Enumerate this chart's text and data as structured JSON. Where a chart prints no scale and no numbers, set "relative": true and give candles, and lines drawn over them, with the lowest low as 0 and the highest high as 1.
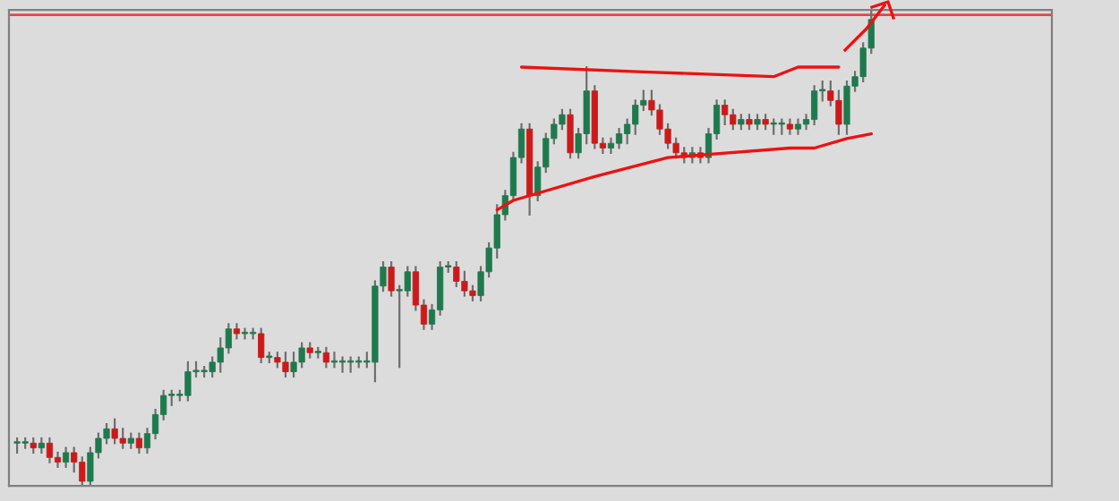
{
  "chart_data": {
    "type": "candlestick",
    "relative": true,
    "categories": [
      null,
      null,
      null,
      null,
      null,
      null,
      null,
      null,
      null,
      null,
      null,
      null,
      null,
      null,
      null,
      null,
      null,
      null,
      null,
      null,
      null,
      null,
      null,
      null,
      null,
      null,
      null,
      null,
      null,
      null,
      null,
      null,
      null,
      null,
      null,
      null,
      null,
      null,
      null,
      null,
      null,
      null,
      null,
      null,
      null,
      null,
      null,
      null,
      null,
      null,
      null,
      null,
      null,
      null,
      null,
      null,
      null,
      null,
      null,
      null,
      null,
      null,
      null,
      null,
      null,
      null,
      null,
      null,
      null,
      null,
      null,
      null,
      null,
      null,
      null,
      null,
      null,
      null,
      null,
      null,
      null,
      null,
      null,
      null,
      null,
      null,
      null,
      null,
      null,
      null,
      null,
      null,
      null,
      null,
      null,
      null,
      null,
      null,
      null,
      null,
      null,
      null,
      null,
      null,
      null,
      null
    ],
    "ohlc": [
      [
        0.09,
        0.1,
        0.07,
        0.09
      ],
      [
        0.09,
        0.1,
        0.08,
        0.09
      ],
      [
        0.09,
        0.1,
        0.07,
        0.08
      ],
      [
        0.08,
        0.1,
        0.07,
        0.09
      ],
      [
        0.09,
        0.1,
        0.05,
        0.06
      ],
      [
        0.06,
        0.07,
        0.04,
        0.05
      ],
      [
        0.05,
        0.08,
        0.04,
        0.07
      ],
      [
        0.07,
        0.08,
        0.03,
        0.05
      ],
      [
        0.05,
        0.06,
        0,
        0.01
      ],
      [
        0.01,
        0.08,
        0,
        0.07
      ],
      [
        0.07,
        0.11,
        0.06,
        0.1
      ],
      [
        0.1,
        0.13,
        0.09,
        0.12
      ],
      [
        0.12,
        0.14,
        0.09,
        0.1
      ],
      [
        0.1,
        0.12,
        0.08,
        0.09
      ],
      [
        0.09,
        0.11,
        0.08,
        0.1
      ],
      [
        0.1,
        0.11,
        0.07,
        0.08
      ],
      [
        0.08,
        0.12,
        0.07,
        0.11
      ],
      [
        0.11,
        0.16,
        0.1,
        0.15
      ],
      [
        0.15,
        0.2,
        0.14,
        0.19
      ],
      [
        0.19,
        0.2,
        0.17,
        0.19
      ],
      [
        0.19,
        0.2,
        0.18,
        0.19
      ],
      [
        0.19,
        0.26,
        0.18,
        0.24
      ],
      [
        0.24,
        0.26,
        0.23,
        0.24
      ],
      [
        0.24,
        0.25,
        0.23,
        0.24
      ],
      [
        0.24,
        0.27,
        0.23,
        0.26
      ],
      [
        0.26,
        0.31,
        0.24,
        0.29
      ],
      [
        0.29,
        0.34,
        0.28,
        0.33
      ],
      [
        0.33,
        0.34,
        0.31,
        0.32
      ],
      [
        0.32,
        0.33,
        0.31,
        0.32
      ],
      [
        0.32,
        0.33,
        0.31,
        0.32
      ],
      [
        0.32,
        0.33,
        0.26,
        0.27
      ],
      [
        0.27,
        0.28,
        0.26,
        0.27
      ],
      [
        0.27,
        0.28,
        0.25,
        0.26
      ],
      [
        0.26,
        0.28,
        0.23,
        0.24
      ],
      [
        0.24,
        0.28,
        0.23,
        0.26
      ],
      [
        0.26,
        0.3,
        0.25,
        0.29
      ],
      [
        0.29,
        0.3,
        0.27,
        0.28
      ],
      [
        0.28,
        0.29,
        0.27,
        0.28
      ],
      [
        0.28,
        0.29,
        0.25,
        0.26
      ],
      [
        0.26,
        0.28,
        0.25,
        0.26
      ],
      [
        0.26,
        0.27,
        0.24,
        0.26
      ],
      [
        0.26,
        0.27,
        0.24,
        0.26
      ],
      [
        0.26,
        0.27,
        0.25,
        0.26
      ],
      [
        0.26,
        0.28,
        0.25,
        0.26
      ],
      [
        0.26,
        0.43,
        0.22,
        0.42
      ],
      [
        0.42,
        0.47,
        0.41,
        0.46
      ],
      [
        0.46,
        0.47,
        0.4,
        0.41
      ],
      [
        0.41,
        0.42,
        0.25,
        0.41
      ],
      [
        0.41,
        0.46,
        0.4,
        0.45
      ],
      [
        0.45,
        0.46,
        0.37,
        0.38
      ],
      [
        0.38,
        0.39,
        0.33,
        0.34
      ],
      [
        0.34,
        0.38,
        0.33,
        0.37
      ],
      [
        0.37,
        0.47,
        0.36,
        0.46
      ],
      [
        0.46,
        0.47,
        0.45,
        0.46
      ],
      [
        0.46,
        0.47,
        0.42,
        0.43
      ],
      [
        0.43,
        0.45,
        0.4,
        0.41
      ],
      [
        0.41,
        0.42,
        0.39,
        0.4
      ],
      [
        0.4,
        0.46,
        0.39,
        0.45
      ],
      [
        0.45,
        0.51,
        0.44,
        0.5
      ],
      [
        0.5,
        0.59,
        0.48,
        0.57
      ],
      [
        0.57,
        0.62,
        0.56,
        0.61
      ],
      [
        0.61,
        0.7,
        0.6,
        0.69
      ],
      [
        0.69,
        0.76,
        0.68,
        0.75
      ],
      [
        0.75,
        0.76,
        0.57,
        0.61
      ],
      [
        0.61,
        0.68,
        0.6,
        0.67
      ],
      [
        0.67,
        0.74,
        0.66,
        0.73
      ],
      [
        0.73,
        0.77,
        0.72,
        0.76
      ],
      [
        0.76,
        0.79,
        0.75,
        0.78
      ],
      [
        0.78,
        0.79,
        0.69,
        0.7
      ],
      [
        0.7,
        0.75,
        0.69,
        0.74
      ],
      [
        0.74,
        0.88,
        0.72,
        0.83
      ],
      [
        0.83,
        0.84,
        0.71,
        0.72
      ],
      [
        0.72,
        0.73,
        0.7,
        0.71
      ],
      [
        0.71,
        0.73,
        0.7,
        0.72
      ],
      [
        0.72,
        0.75,
        0.71,
        0.74
      ],
      [
        0.74,
        0.77,
        0.72,
        0.76
      ],
      [
        0.76,
        0.81,
        0.74,
        0.8
      ],
      [
        0.8,
        0.83,
        0.79,
        0.81
      ],
      [
        0.81,
        0.83,
        0.78,
        0.79
      ],
      [
        0.79,
        0.8,
        0.74,
        0.75
      ],
      [
        0.75,
        0.76,
        0.71,
        0.72
      ],
      [
        0.72,
        0.73,
        0.69,
        0.7
      ],
      [
        0.7,
        0.71,
        0.68,
        0.69
      ],
      [
        0.69,
        0.71,
        0.68,
        0.7
      ],
      [
        0.7,
        0.71,
        0.68,
        0.69
      ],
      [
        0.69,
        0.75,
        0.68,
        0.74
      ],
      [
        0.74,
        0.81,
        0.73,
        0.8
      ],
      [
        0.8,
        0.81,
        0.76,
        0.78
      ],
      [
        0.78,
        0.79,
        0.75,
        0.76
      ],
      [
        0.76,
        0.78,
        0.75,
        0.77
      ],
      [
        0.77,
        0.78,
        0.75,
        0.76
      ],
      [
        0.76,
        0.78,
        0.75,
        0.77
      ],
      [
        0.77,
        0.78,
        0.75,
        0.76
      ],
      [
        0.76,
        0.77,
        0.74,
        0.76
      ],
      [
        0.76,
        0.77,
        0.74,
        0.76
      ],
      [
        0.76,
        0.77,
        0.74,
        0.75
      ],
      [
        0.75,
        0.77,
        0.74,
        0.76
      ],
      [
        0.76,
        0.78,
        0.75,
        0.77
      ],
      [
        0.77,
        0.84,
        0.76,
        0.83
      ],
      [
        0.83,
        0.85,
        0.81,
        0.83
      ],
      [
        0.83,
        0.85,
        0.8,
        0.81
      ],
      [
        0.81,
        0.83,
        0.74,
        0.76
      ],
      [
        0.76,
        0.85,
        0.74,
        0.84
      ],
      [
        0.84,
        0.87,
        0.83,
        0.86
      ],
      [
        0.86,
        0.93,
        0.85,
        0.92
      ],
      [
        0.92,
        1.0,
        0.91,
        0.98
      ]
    ],
    "series": [
      {
        "type": "line",
        "color": "#ee1111",
        "values": [
          null,
          null,
          null,
          null,
          null,
          null,
          null,
          null,
          null,
          null,
          null,
          null,
          null,
          null,
          null,
          null,
          null,
          null,
          null,
          null,
          null,
          null,
          null,
          null,
          null,
          null,
          null,
          null,
          null,
          null,
          null,
          null,
          null,
          null,
          null,
          null,
          null,
          null,
          null,
          null,
          null,
          null,
          null,
          null,
          null,
          null,
          null,
          null,
          null,
          null,
          null,
          null,
          null,
          null,
          null,
          null,
          null,
          null,
          null,
          null,
          null,
          null,
          0.88,
          null,
          null,
          null,
          null,
          null,
          null,
          null,
          null,
          null,
          null,
          null,
          null,
          null,
          null,
          0.87,
          null,
          null,
          null,
          null,
          null,
          null,
          null,
          null,
          null,
          null,
          null,
          null,
          null,
          null,
          null,
          0.86,
          null,
          null,
          0.88,
          null,
          null,
          null,
          null,
          0.88,
          null,
          null,
          null,
          null
        ]
      },
      {
        "type": "line",
        "color": "#ee1111",
        "values": [
          null,
          null,
          null,
          null,
          null,
          null,
          null,
          null,
          null,
          null,
          null,
          null,
          null,
          null,
          null,
          null,
          null,
          null,
          null,
          null,
          null,
          null,
          null,
          null,
          null,
          null,
          null,
          null,
          null,
          null,
          null,
          null,
          null,
          null,
          null,
          null,
          null,
          null,
          null,
          null,
          null,
          null,
          null,
          null,
          null,
          null,
          null,
          null,
          null,
          null,
          null,
          null,
          null,
          null,
          null,
          null,
          null,
          null,
          null,
          0.58,
          null,
          0.6,
          null,
          null,
          null,
          null,
          null,
          null,
          null,
          null,
          null,
          0.65,
          null,
          null,
          null,
          null,
          null,
          null,
          null,
          null,
          0.69,
          null,
          null,
          null,
          null,
          null,
          null,
          null,
          null,
          null,
          null,
          null,
          null,
          null,
          null,
          0.71,
          null,
          null,
          0.71,
          null,
          null,
          null,
          0.73,
          null,
          null,
          0.74
        ]
      }
    ],
    "ref_lines": [
      {
        "axis": "y",
        "value": 0.99,
        "color": "#f04040",
        "line_style": "solid"
      }
    ]
  }
}
